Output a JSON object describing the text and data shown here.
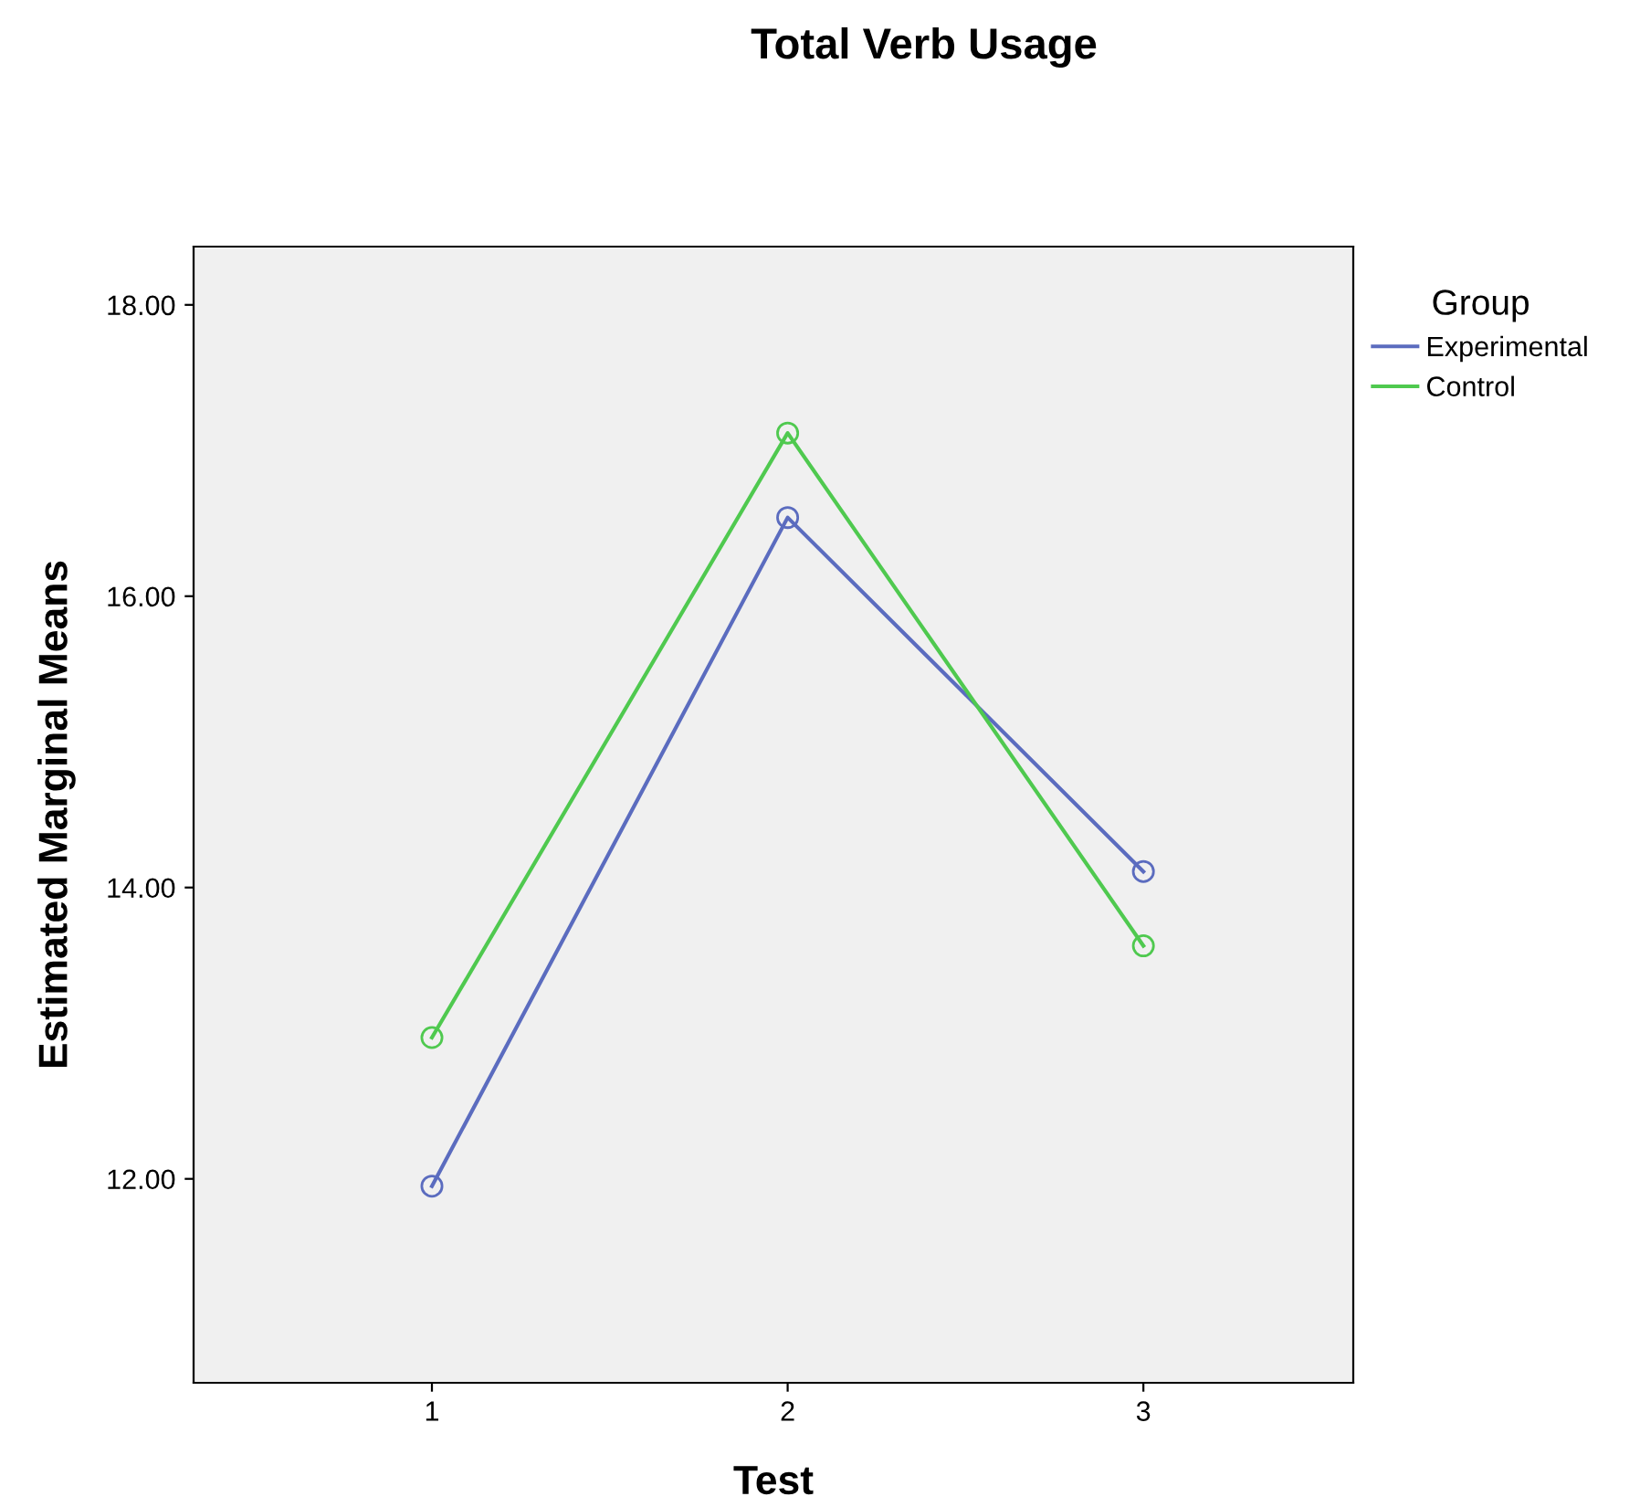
{
  "chart_data": {
    "type": "line",
    "title": "Total Verb Usage",
    "xlabel": "Test",
    "ylabel": "Estimated Marginal Means",
    "legend_title": "Group",
    "categories": [
      "1",
      "2",
      "3"
    ],
    "series": [
      {
        "name": "Experimental",
        "color": "#5b6cbf",
        "values": [
          11.95,
          16.54,
          14.11
        ]
      },
      {
        "name": "Control",
        "color": "#4fc94f",
        "values": [
          12.97,
          17.12,
          13.6
        ]
      }
    ],
    "ylim": [
      10.6,
      18.4
    ],
    "yticks": [
      {
        "value": 12,
        "label": "12.00"
      },
      {
        "value": 14,
        "label": "14.00"
      },
      {
        "value": 16,
        "label": "16.00"
      },
      {
        "value": 18,
        "label": "18.00"
      }
    ],
    "grid": false,
    "legend": "top right",
    "marker": "circle",
    "line_style": "solid"
  }
}
